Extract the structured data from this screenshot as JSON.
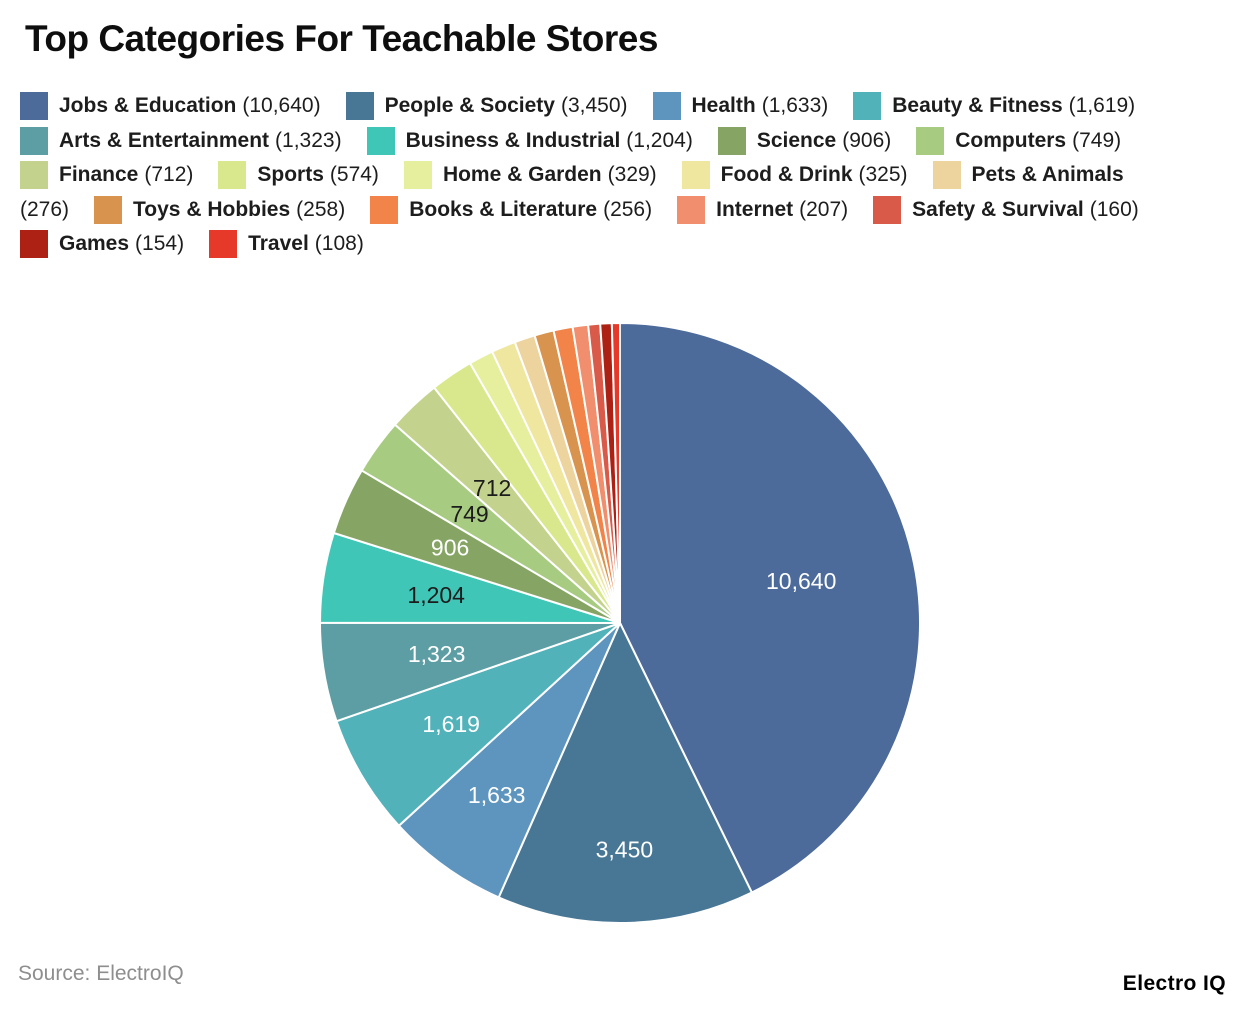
{
  "title": "Top Categories For Teachable Stores",
  "source": "Source: ElectroIQ",
  "brand": "Electro IQ",
  "chart_data": {
    "type": "pie",
    "title": "Top Categories For Teachable Stores",
    "total": 24883,
    "start_angle_deg": 0,
    "direction": "clockwise",
    "legend_position": "top",
    "slices": [
      {
        "label": "Jobs & Education",
        "value": 10640,
        "value_display": "10,640",
        "color": "#4c6a9a",
        "slice_label": "10,640",
        "slice_label_color": "#ffffff"
      },
      {
        "label": "People & Society",
        "value": 3450,
        "value_display": "3,450",
        "color": "#487795",
        "slice_label": "3,450",
        "slice_label_color": "#ffffff"
      },
      {
        "label": "Health",
        "value": 1633,
        "value_display": "1,633",
        "color": "#5d95bf",
        "slice_label": "1,633",
        "slice_label_color": "#ffffff"
      },
      {
        "label": "Beauty & Fitness",
        "value": 1619,
        "value_display": "1,619",
        "color": "#51b2ba",
        "slice_label": "1,619",
        "slice_label_color": "#ffffff"
      },
      {
        "label": "Arts & Entertainment",
        "value": 1323,
        "value_display": "1,323",
        "color": "#5c9ea4",
        "slice_label": "1,323",
        "slice_label_color": "#ffffff"
      },
      {
        "label": "Business & Industrial",
        "value": 1204,
        "value_display": "1,204",
        "color": "#3fc6b7",
        "slice_label": "1,204",
        "slice_label_color": "#1c1c1c"
      },
      {
        "label": "Science",
        "value": 906,
        "value_display": "906",
        "color": "#86a565",
        "slice_label": "906",
        "slice_label_color": "#ffffff"
      },
      {
        "label": "Computers",
        "value": 749,
        "value_display": "749",
        "color": "#a8cb82",
        "slice_label": "749",
        "slice_label_color": "#1c1c1c"
      },
      {
        "label": "Finance",
        "value": 712,
        "value_display": "712",
        "color": "#c3d28c",
        "slice_label": "712",
        "slice_label_color": "#1c1c1c"
      },
      {
        "label": "Sports",
        "value": 574,
        "value_display": "574",
        "color": "#d9e88c"
      },
      {
        "label": "Home & Garden",
        "value": 329,
        "value_display": "329",
        "color": "#e6ef9d"
      },
      {
        "label": "Food & Drink",
        "value": 325,
        "value_display": "325",
        "color": "#efe6a0"
      },
      {
        "label": "Pets & Animals",
        "value": 276,
        "value_display": "276",
        "color": "#edd49e"
      },
      {
        "label": "Toys & Hobbies",
        "value": 258,
        "value_display": "258",
        "color": "#d8944e"
      },
      {
        "label": "Books & Literature",
        "value": 256,
        "value_display": "256",
        "color": "#f28449"
      },
      {
        "label": "Internet",
        "value": 207,
        "value_display": "207",
        "color": "#f18e6d"
      },
      {
        "label": "Safety & Survival",
        "value": 160,
        "value_display": "160",
        "color": "#d95a49"
      },
      {
        "label": "Games",
        "value": 154,
        "value_display": "154",
        "color": "#ad2115"
      },
      {
        "label": "Travel",
        "value": 108,
        "value_display": "108",
        "color": "#e73929"
      }
    ]
  }
}
